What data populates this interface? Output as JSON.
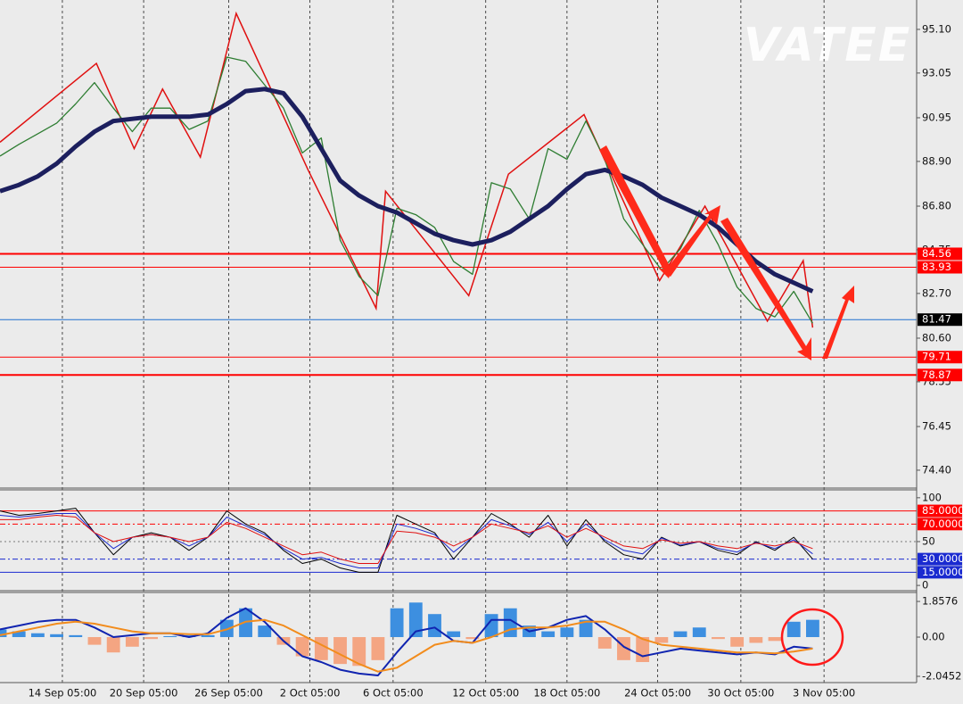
{
  "watermark": "VATEE",
  "chart_data": [
    {
      "type": "line",
      "xlim": [
        0,
        48.5
      ],
      "xticks": [
        {
          "value": 3.3,
          "label": "14 Sep 05:00"
        },
        {
          "value": 7.6,
          "label": "20 Sep 05:00"
        },
        {
          "value": 12.1,
          "label": "26 Sep 05:00"
        },
        {
          "value": 16.4,
          "label": "2 Oct 05:00"
        },
        {
          "value": 20.8,
          "label": "6 Oct 05:00"
        },
        {
          "value": 25.7,
          "label": "12 Oct 05:00"
        },
        {
          "value": 30,
          "label": "18 Oct 05:00"
        },
        {
          "value": 34.8,
          "label": "24 Oct 05:00"
        },
        {
          "value": 39.2,
          "label": "30 Oct 05:00"
        },
        {
          "value": 43.6,
          "label": "3 Nov 05:00"
        }
      ],
      "ylim": [
        73.56,
        96.48
      ],
      "yticks": [
        {
          "value": 95.1,
          "label": "95.10"
        },
        93.05,
        90.95,
        {
          "value": 88.9,
          "label": "88.90"
        },
        {
          "value": 86.8,
          "label": "86.80"
        },
        84.75,
        {
          "value": 82.7,
          "label": "82.70"
        },
        {
          "value": 80.6,
          "label": "80.60"
        },
        78.55,
        76.45,
        {
          "value": 74.4,
          "label": "74.40"
        }
      ],
      "x": [
        0,
        1,
        2,
        3,
        4,
        5,
        6,
        7,
        8,
        9,
        10,
        11,
        12,
        13,
        14,
        15,
        16,
        17,
        18,
        19,
        20,
        21,
        22,
        23,
        24,
        25,
        26,
        27,
        28,
        29,
        30,
        31,
        32,
        33,
        34,
        35,
        36,
        37,
        38,
        39,
        40,
        41,
        42,
        43
      ],
      "series": [
        {
          "color": "#2e7d32",
          "width": 1.3,
          "values": [
            89.15,
            89.7,
            90.2,
            90.7,
            91.6,
            92.6,
            91.4,
            90.3,
            91.4,
            91.4,
            90.4,
            90.8,
            93.8,
            93.6,
            92.5,
            91.4,
            89.3,
            90.0,
            85.2,
            83.5,
            82.6,
            86.7,
            86.4,
            85.8,
            84.2,
            83.6,
            87.9,
            87.6,
            86.2,
            89.5,
            89.0,
            90.8,
            89.0,
            86.2,
            85.0,
            83.8,
            84.8,
            86.6,
            85.0,
            83.0,
            82.0,
            81.6,
            82.8,
            81.3
          ]
        },
        {
          "color": "#1c1f5e",
          "width": 5,
          "values": [
            87.5,
            87.8,
            88.2,
            88.8,
            89.6,
            90.3,
            90.8,
            90.9,
            91.0,
            91.0,
            91.0,
            91.1,
            91.6,
            92.2,
            92.3,
            92.1,
            91.0,
            89.5,
            88.0,
            87.3,
            86.8,
            86.5,
            86.0,
            85.5,
            85.2,
            85.0,
            85.2,
            85.6,
            86.2,
            86.8,
            87.6,
            88.3,
            88.5,
            88.2,
            87.8,
            87.2,
            86.8,
            86.4,
            85.8,
            85.0,
            84.2,
            83.6,
            83.2,
            82.8
          ]
        }
      ],
      "zigzag": {
        "color": "#e01010",
        "x": [
          0,
          5.1,
          7.1,
          8.6,
          10.6,
          12.5,
          16.3,
          19.9,
          20.4,
          24.8,
          26.9,
          30.9,
          34.9,
          37.3,
          40.6,
          42.5,
          43
        ],
        "values": [
          89.8,
          93.5,
          89.5,
          92.3,
          89.1,
          95.85,
          88.5,
          82.0,
          87.5,
          82.6,
          88.3,
          91.1,
          83.3,
          86.8,
          81.4,
          84.24,
          81.1
        ]
      },
      "levels": [
        84.56,
        83.93,
        81.47,
        79.71,
        78.87
      ],
      "level_colors": [
        "#ff0000",
        "#ff0000",
        "#1e6fd0",
        "#ff0000",
        "#ff0000"
      ],
      "level_label_colors": [
        "#ff0000",
        "#ff0000",
        "#000000",
        "#ff0000",
        "#ff0000"
      ]
    },
    {
      "type": "line",
      "xlim": [
        0,
        48.5
      ],
      "ylim": [
        -6,
        109
      ],
      "yticks": [
        100,
        50,
        0
      ],
      "x": [
        0,
        1,
        2,
        3,
        4,
        5,
        6,
        7,
        8,
        9,
        10,
        11,
        12,
        13,
        14,
        15,
        16,
        17,
        18,
        19,
        20,
        21,
        22,
        23,
        24,
        25,
        26,
        27,
        28,
        29,
        30,
        31,
        32,
        33,
        34,
        35,
        36,
        37,
        38,
        39,
        40,
        41,
        42,
        43
      ],
      "series": [
        {
          "color": "#000000",
          "width": 1,
          "values": [
            85,
            80,
            82,
            85,
            88,
            60,
            35,
            55,
            60,
            55,
            40,
            55,
            85,
            70,
            60,
            40,
            25,
            30,
            20,
            15,
            15,
            80,
            70,
            60,
            30,
            55,
            82,
            70,
            55,
            80,
            45,
            75,
            50,
            35,
            30,
            55,
            45,
            50,
            40,
            35,
            50,
            40,
            55,
            30
          ]
        },
        {
          "color": "#1a2ad0",
          "width": 1,
          "values": [
            80,
            78,
            80,
            82,
            82,
            60,
            42,
            55,
            58,
            55,
            45,
            55,
            78,
            68,
            58,
            42,
            30,
            32,
            25,
            20,
            20,
            70,
            65,
            58,
            38,
            55,
            75,
            68,
            58,
            72,
            50,
            70,
            52,
            40,
            36,
            54,
            46,
            50,
            42,
            38,
            49,
            42,
            52,
            36
          ]
        },
        {
          "color": "#e01010",
          "width": 1,
          "values": [
            75,
            75,
            78,
            80,
            78,
            60,
            50,
            55,
            58,
            55,
            50,
            55,
            72,
            65,
            55,
            45,
            35,
            38,
            30,
            25,
            25,
            62,
            60,
            55,
            45,
            55,
            70,
            65,
            60,
            68,
            55,
            65,
            55,
            45,
            42,
            52,
            48,
            50,
            45,
            42,
            48,
            45,
            50,
            42
          ]
        }
      ],
      "levels": [
        {
          "value": 85,
          "label": "85.0000"
        },
        {
          "value": 70,
          "label": "70.0000"
        },
        {
          "value": 30,
          "label": "30.0000"
        },
        {
          "value": 15,
          "label": "15.0000"
        }
      ],
      "level_colors": [
        "#ff0000",
        "#ff0000",
        "#1a2ad0",
        "#1a2ad0"
      ],
      "level_label_colors": [
        "#ff0000",
        "#ff0000",
        "#1a2ad0",
        "#1a2ad0"
      ]
    },
    {
      "type": "macd",
      "xlim": [
        0,
        48.5
      ],
      "ylim": [
        -2.37,
        2.325
      ],
      "yticks": [
        1.8576,
        {
          "value": 0,
          "label": "0.00"
        },
        -2.0452
      ],
      "x": [
        0,
        1,
        2,
        3,
        4,
        5,
        6,
        7,
        8,
        9,
        10,
        11,
        12,
        13,
        14,
        15,
        16,
        17,
        18,
        19,
        20,
        21,
        22,
        23,
        24,
        25,
        26,
        27,
        28,
        29,
        30,
        31,
        32,
        33,
        34,
        35,
        36,
        37,
        38,
        39,
        40,
        41,
        42,
        43
      ],
      "histogram": {
        "color": "#3d8fe0",
        "negative_color": "#f4a582",
        "values": [
          0.4,
          0.3,
          0.2,
          0.15,
          0.1,
          -0.4,
          -0.8,
          -0.5,
          -0.1,
          0.05,
          0.1,
          0.1,
          0.9,
          1.5,
          0.6,
          -0.4,
          -1.0,
          -1.2,
          -1.4,
          -1.5,
          -1.2,
          1.5,
          1.8,
          1.2,
          0.3,
          -0.1,
          1.2,
          1.5,
          0.6,
          0.3,
          0.5,
          0.9,
          -0.6,
          -1.2,
          -1.3,
          -0.3,
          0.3,
          0.5,
          -0.1,
          -0.5,
          -0.3,
          -0.2,
          0.8,
          0.9
        ]
      },
      "series": [
        {
          "color": "#1024b0",
          "width": 2,
          "values": [
            0.4,
            0.6,
            0.8,
            0.9,
            0.9,
            0.5,
            0,
            0.1,
            0.2,
            0.2,
            0,
            0.2,
            1.0,
            1.5,
            0.8,
            -0.2,
            -1.0,
            -1.3,
            -1.7,
            -1.9,
            -2.0,
            -0.8,
            0.3,
            0.5,
            -0.2,
            -0.3,
            0.9,
            0.9,
            0.3,
            0.5,
            0.9,
            1.1,
            0.4,
            -0.5,
            -1.0,
            -0.8,
            -0.6,
            -0.7,
            -0.8,
            -0.9,
            -0.8,
            -0.9,
            -0.5,
            -0.6
          ]
        },
        {
          "color": "#f28c1c",
          "width": 2,
          "values": [
            0.1,
            0.3,
            0.5,
            0.7,
            0.8,
            0.7,
            0.5,
            0.3,
            0.2,
            0.2,
            0.15,
            0.15,
            0.4,
            0.8,
            0.9,
            0.6,
            0.1,
            -0.4,
            -0.9,
            -1.4,
            -1.8,
            -1.6,
            -1.0,
            -0.4,
            -0.2,
            -0.3,
            0,
            0.4,
            0.5,
            0.5,
            0.6,
            0.8,
            0.8,
            0.4,
            -0.1,
            -0.4,
            -0.5,
            -0.6,
            -0.7,
            -0.8,
            -0.8,
            -0.85,
            -0.75,
            -0.6
          ]
        }
      ]
    }
  ]
}
